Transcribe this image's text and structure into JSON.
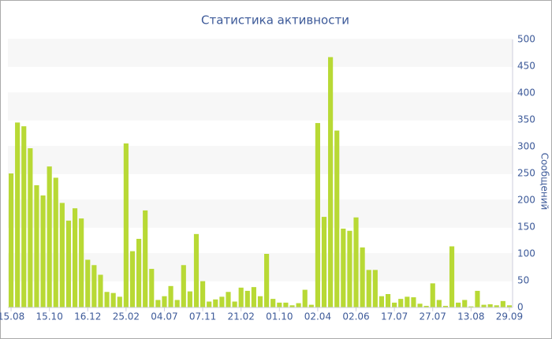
{
  "chart_data": {
    "type": "bar",
    "title": "Статистика активности",
    "y_label": "Сообщений",
    "y_axis_side": "right",
    "categories": [
      "15.08",
      null,
      null,
      null,
      null,
      null,
      "15.10",
      null,
      null,
      null,
      null,
      null,
      "16.12",
      null,
      null,
      null,
      null,
      null,
      "25.02",
      null,
      null,
      null,
      null,
      null,
      "04.07",
      null,
      null,
      null,
      null,
      null,
      "07.11",
      null,
      null,
      null,
      null,
      null,
      "21.02",
      null,
      null,
      null,
      null,
      null,
      "01.10",
      null,
      null,
      null,
      null,
      null,
      "02.04",
      null,
      null,
      null,
      null,
      null,
      "02.06",
      null,
      null,
      null,
      null,
      null,
      "17.07",
      null,
      null,
      null,
      null,
      null,
      "27.07",
      null,
      null,
      null,
      null,
      null,
      "13.08",
      null,
      null,
      null,
      null,
      null,
      "29.09"
    ],
    "values": [
      250,
      345,
      338,
      297,
      228,
      209,
      263,
      242,
      195,
      162,
      185,
      166,
      89,
      79,
      61,
      29,
      27,
      20,
      306,
      105,
      128,
      181,
      72,
      14,
      21,
      40,
      14,
      79,
      30,
      137,
      49,
      11,
      15,
      20,
      29,
      11,
      37,
      31,
      38,
      21,
      100,
      16,
      9,
      9,
      4,
      8,
      33,
      5,
      344,
      169,
      467,
      330,
      147,
      143,
      168,
      112,
      70,
      70,
      21,
      25,
      9,
      16,
      20,
      19,
      7,
      3,
      45,
      14,
      3,
      114,
      9,
      14,
      2,
      31,
      5,
      6,
      4,
      12,
      4
    ],
    "color": "#b8d935",
    "ylim": [
      0,
      500
    ],
    "yticks": [
      0,
      50,
      100,
      150,
      200,
      250,
      300,
      350,
      400,
      450,
      500
    ],
    "grid": true
  }
}
